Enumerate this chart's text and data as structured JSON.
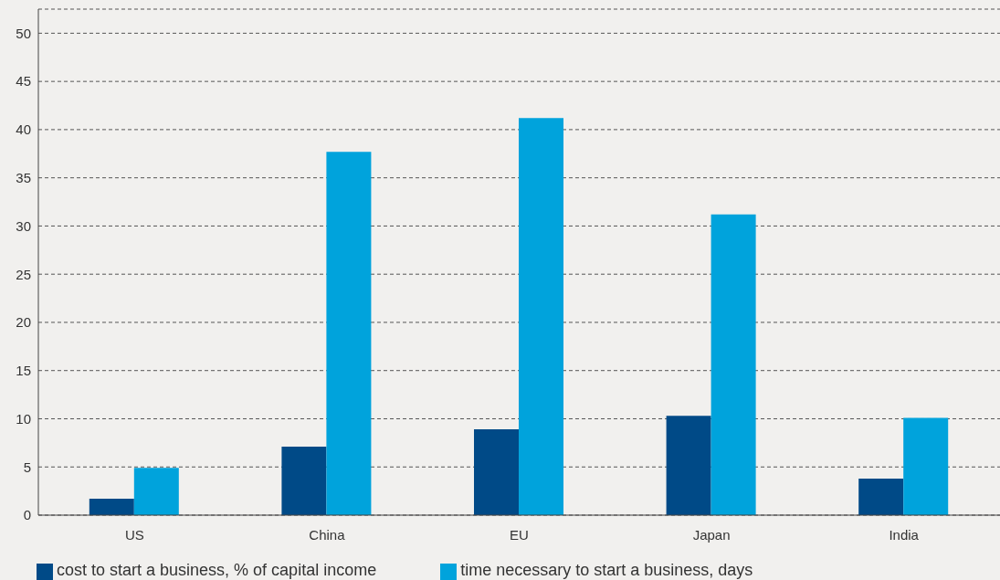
{
  "chart_data": {
    "type": "bar",
    "categories": [
      "US",
      "China",
      "EU",
      "Japan",
      "India"
    ],
    "series": [
      {
        "name": "cost to start a business, % of capital income",
        "color": "#004a87",
        "values": [
          1.7,
          7.1,
          8.9,
          10.3,
          3.8
        ]
      },
      {
        "name": "time necessary to start a business, days",
        "color": "#00a3dc",
        "values": [
          4.9,
          37.7,
          41.2,
          31.2,
          10.1
        ]
      }
    ],
    "ylim": [
      0,
      52.5
    ],
    "yticks": [
      0,
      5,
      10,
      15,
      20,
      25,
      30,
      35,
      40,
      45,
      50
    ],
    "grid": "y",
    "legend": "bottom left"
  }
}
